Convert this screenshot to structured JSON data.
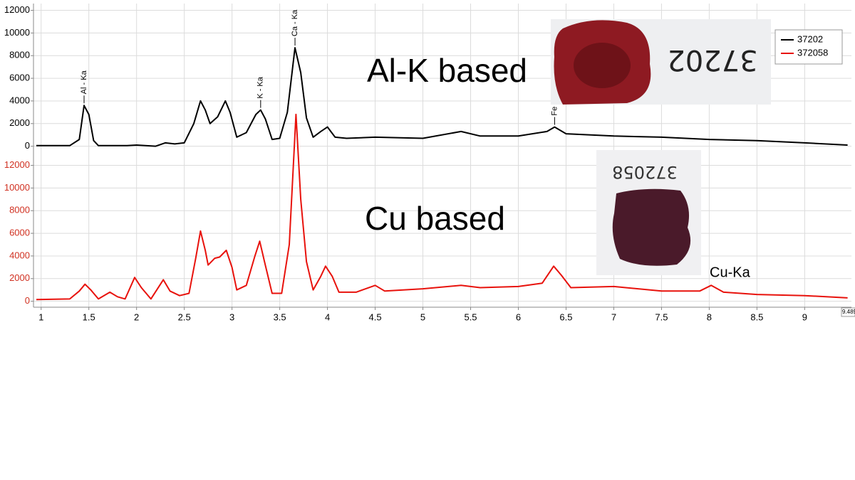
{
  "chart_data": [
    {
      "type": "line",
      "panel_label": "Al-K based",
      "photo_label": "37202",
      "xlim": [
        0.92,
        9.49
      ],
      "ylim": [
        -400,
        12600
      ],
      "yticks": [
        0,
        2000,
        4000,
        6000,
        8000,
        10000,
        12000
      ],
      "grid": true,
      "x": [
        0.95,
        1.3,
        1.4,
        1.45,
        1.5,
        1.55,
        1.6,
        1.9,
        2.0,
        2.2,
        2.3,
        2.4,
        2.5,
        2.6,
        2.67,
        2.72,
        2.77,
        2.85,
        2.93,
        2.98,
        3.05,
        3.15,
        3.25,
        3.3,
        3.35,
        3.42,
        3.5,
        3.58,
        3.66,
        3.72,
        3.78,
        3.85,
        3.93,
        4.0,
        4.08,
        4.2,
        4.5,
        5.0,
        5.4,
        5.6,
        6.0,
        6.3,
        6.38,
        6.5,
        7.0,
        7.5,
        8.0,
        8.5,
        9.0,
        9.45
      ],
      "series": [
        {
          "name": "37202",
          "color": "#000000",
          "values": [
            50,
            50,
            600,
            3600,
            2800,
            500,
            50,
            50,
            100,
            0,
            300,
            200,
            300,
            2000,
            4000,
            3200,
            2000,
            2600,
            4000,
            3000,
            800,
            1200,
            2800,
            3200,
            2400,
            600,
            700,
            3000,
            8700,
            6500,
            2500,
            800,
            1300,
            1700,
            800,
            700,
            800,
            700,
            1300,
            900,
            900,
            1300,
            1700,
            1100,
            900,
            800,
            600,
            500,
            300,
            100
          ]
        }
      ],
      "peak_labels": [
        {
          "text": "Al - Ka",
          "x": 1.45
        },
        {
          "text": "K - Ka",
          "x": 3.3
        },
        {
          "text": "Ca - Ka",
          "x": 3.66
        },
        {
          "text": "Fe -",
          "x": 6.38
        }
      ]
    },
    {
      "type": "line",
      "panel_label": "Cu based",
      "photo_label": "372058",
      "annotation": "Cu-Ka",
      "cursor_readout": "9.489",
      "xlim": [
        0.92,
        9.49
      ],
      "xticks": [
        1,
        1.5,
        2,
        2.5,
        3,
        3.5,
        4,
        4.5,
        5,
        5.5,
        6,
        6.5,
        7,
        7.5,
        8,
        8.5,
        9
      ],
      "ylim": [
        -400,
        12600
      ],
      "yticks": [
        0,
        2000,
        4000,
        6000,
        8000,
        10000,
        12000
      ],
      "grid": true,
      "x": [
        0.95,
        1.3,
        1.4,
        1.46,
        1.52,
        1.6,
        1.72,
        1.8,
        1.88,
        1.98,
        2.05,
        2.15,
        2.28,
        2.35,
        2.45,
        2.55,
        2.62,
        2.67,
        2.72,
        2.75,
        2.82,
        2.87,
        2.94,
        3.0,
        3.05,
        3.15,
        3.24,
        3.29,
        3.34,
        3.42,
        3.52,
        3.6,
        3.67,
        3.72,
        3.78,
        3.85,
        3.93,
        3.98,
        4.05,
        4.12,
        4.3,
        4.5,
        4.6,
        5.0,
        5.4,
        5.6,
        6.0,
        6.25,
        6.37,
        6.45,
        6.55,
        7.0,
        7.5,
        7.9,
        8.02,
        8.15,
        8.5,
        9.0,
        9.45
      ],
      "series": [
        {
          "name": "372058",
          "color": "#e8120c",
          "values": [
            150,
            200,
            900,
            1500,
            1000,
            200,
            800,
            400,
            200,
            2100,
            1200,
            200,
            1900,
            900,
            500,
            700,
            3800,
            6200,
            4500,
            3200,
            3800,
            3900,
            4500,
            3000,
            1000,
            1400,
            4000,
            5300,
            3500,
            700,
            700,
            5000,
            16500,
            9000,
            3500,
            1000,
            2200,
            3100,
            2200,
            800,
            800,
            1400,
            900,
            1100,
            1400,
            1200,
            1300,
            1600,
            3100,
            2300,
            1200,
            1300,
            900,
            900,
            1400,
            800,
            600,
            500,
            300
          ]
        }
      ]
    }
  ]
}
